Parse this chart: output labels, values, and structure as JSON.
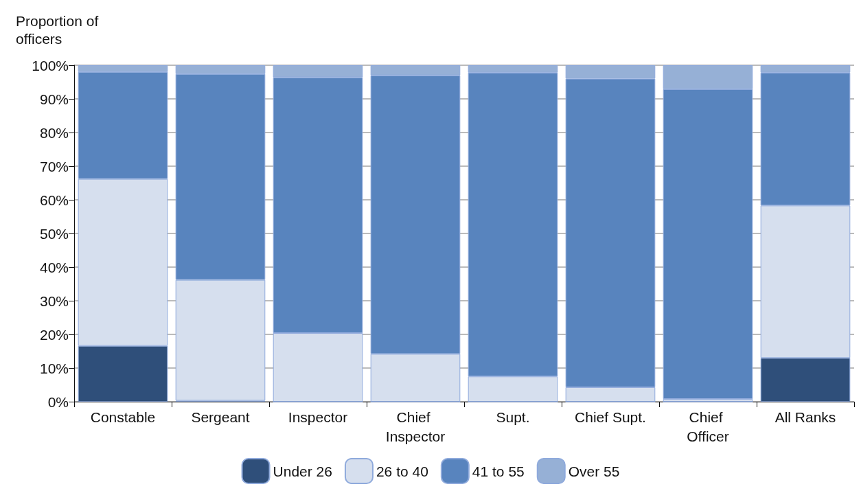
{
  "chart_data": {
    "type": "bar",
    "stacked": true,
    "ylabel": "Proportion of officers",
    "categories": [
      "Constable",
      "Sergeant",
      "Inspector",
      "Chief Inspector",
      "Supt.",
      "Chief Supt.",
      "Chief Officer",
      "All Ranks"
    ],
    "series": [
      {
        "name": "Under 26",
        "color": "#2f4f7a",
        "values": [
          16.6,
          0.3,
          0,
          0,
          0,
          0,
          0,
          13.0
        ]
      },
      {
        "name": "26 to 40",
        "color": "#d6dfee",
        "values": [
          49.6,
          35.9,
          20.4,
          14.2,
          7.5,
          4.3,
          0.8,
          45.3
        ]
      },
      {
        "name": "41 to 55",
        "color": "#5884be",
        "values": [
          31.8,
          61.2,
          76.0,
          82.8,
          90.3,
          91.7,
          92.1,
          39.5
        ]
      },
      {
        "name": "Over 55",
        "color": "#96b0d6",
        "values": [
          2.0,
          2.6,
          3.6,
          3.0,
          2.2,
          4.0,
          7.1,
          2.2
        ]
      }
    ],
    "ylim": [
      0,
      100
    ],
    "yticks": [
      {
        "value": 0,
        "label": "0%"
      },
      {
        "value": 10,
        "label": "10%"
      },
      {
        "value": 20,
        "label": "20%"
      },
      {
        "value": 30,
        "label": "30%"
      },
      {
        "value": 40,
        "label": "40%"
      },
      {
        "value": 50,
        "label": "50%"
      },
      {
        "value": 60,
        "label": "60%"
      },
      {
        "value": 70,
        "label": "70%"
      },
      {
        "value": 80,
        "label": "80%"
      },
      {
        "value": 90,
        "label": "90%"
      },
      {
        "value": 100,
        "label": "100%"
      }
    ],
    "grid": "y",
    "legend": "bottom"
  }
}
